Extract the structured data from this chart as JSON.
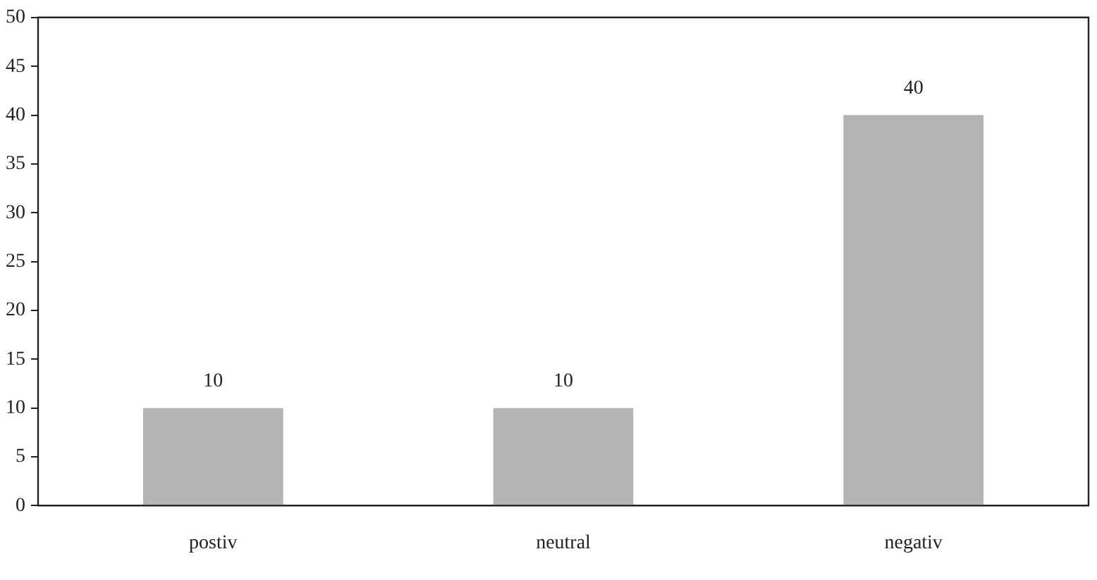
{
  "chart_data": {
    "type": "bar",
    "categories": [
      "postiv",
      "neutral",
      "negativ"
    ],
    "values": [
      10,
      10,
      40
    ],
    "color": "#b4b4b4",
    "ylim": [
      0,
      50
    ],
    "yticks": [
      0,
      5,
      10,
      15,
      20,
      25,
      30,
      35,
      40,
      45,
      50
    ],
    "grid": false,
    "data_labels": true
  }
}
